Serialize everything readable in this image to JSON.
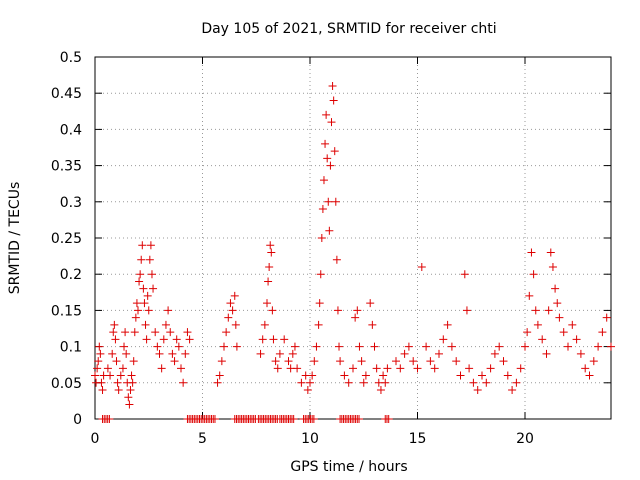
{
  "chart_data": {
    "type": "scatter",
    "title": "Day 105 of 2021, SRMTID for receiver chti",
    "xlabel": "GPS time / hours",
    "ylabel": "SRMTID / TECUs",
    "xlim": [
      0,
      24
    ],
    "ylim": [
      0,
      0.5
    ],
    "xticks": [
      0,
      5,
      10,
      15,
      20
    ],
    "yticks": [
      0,
      0.05,
      0.1,
      0.15,
      0.2,
      0.25,
      0.3,
      0.35,
      0.4,
      0.45,
      0.5
    ],
    "xtick_labels": [
      "0",
      "5",
      "10",
      "15",
      "20"
    ],
    "ytick_labels": [
      "0",
      "0.05",
      "0.1",
      "0.15",
      "0.2",
      "0.25",
      "0.3",
      "0.35",
      "0.4",
      "0.45",
      "0.5"
    ],
    "grid": true,
    "marker": "+",
    "color": "#dd0000",
    "series": [
      {
        "name": "SRMTID",
        "points": [
          [
            0.0,
            0.06
          ],
          [
            0.05,
            0.05
          ],
          [
            0.1,
            0.07
          ],
          [
            0.15,
            0.08
          ],
          [
            0.2,
            0.1
          ],
          [
            0.25,
            0.09
          ],
          [
            0.3,
            0.05
          ],
          [
            0.35,
            0.04
          ],
          [
            0.4,
            0.06
          ],
          [
            0.6,
            0.07
          ],
          [
            0.7,
            0.06
          ],
          [
            0.8,
            0.09
          ],
          [
            0.85,
            0.12
          ],
          [
            0.9,
            0.13
          ],
          [
            0.95,
            0.11
          ],
          [
            1.0,
            0.08
          ],
          [
            1.05,
            0.05
          ],
          [
            1.1,
            0.04
          ],
          [
            1.2,
            0.06
          ],
          [
            1.3,
            0.07
          ],
          [
            1.35,
            0.1
          ],
          [
            1.4,
            0.12
          ],
          [
            1.45,
            0.09
          ],
          [
            1.5,
            0.05
          ],
          [
            1.55,
            0.03
          ],
          [
            1.6,
            0.02
          ],
          [
            1.65,
            0.04
          ],
          [
            1.7,
            0.06
          ],
          [
            1.75,
            0.05
          ],
          [
            1.8,
            0.08
          ],
          [
            1.85,
            0.12
          ],
          [
            1.9,
            0.14
          ],
          [
            1.95,
            0.16
          ],
          [
            2.0,
            0.15
          ],
          [
            2.05,
            0.19
          ],
          [
            2.1,
            0.2
          ],
          [
            2.15,
            0.22
          ],
          [
            2.2,
            0.24
          ],
          [
            2.25,
            0.18
          ],
          [
            2.3,
            0.16
          ],
          [
            2.35,
            0.13
          ],
          [
            2.4,
            0.11
          ],
          [
            2.45,
            0.17
          ],
          [
            2.5,
            0.15
          ],
          [
            2.55,
            0.22
          ],
          [
            2.6,
            0.24
          ],
          [
            2.65,
            0.2
          ],
          [
            2.7,
            0.18
          ],
          [
            2.8,
            0.12
          ],
          [
            2.9,
            0.1
          ],
          [
            3.0,
            0.09
          ],
          [
            3.1,
            0.07
          ],
          [
            3.2,
            0.11
          ],
          [
            3.3,
            0.13
          ],
          [
            3.4,
            0.15
          ],
          [
            3.5,
            0.12
          ],
          [
            3.6,
            0.09
          ],
          [
            3.7,
            0.08
          ],
          [
            3.8,
            0.11
          ],
          [
            3.9,
            0.1
          ],
          [
            4.0,
            0.07
          ],
          [
            4.1,
            0.05
          ],
          [
            4.2,
            0.09
          ],
          [
            4.3,
            0.12
          ],
          [
            4.4,
            0.11
          ],
          [
            5.7,
            0.05
          ],
          [
            5.8,
            0.06
          ],
          [
            5.9,
            0.08
          ],
          [
            6.0,
            0.1
          ],
          [
            6.1,
            0.12
          ],
          [
            6.2,
            0.14
          ],
          [
            6.3,
            0.16
          ],
          [
            6.4,
            0.15
          ],
          [
            6.5,
            0.17
          ],
          [
            6.55,
            0.13
          ],
          [
            6.6,
            0.1
          ],
          [
            7.7,
            0.09
          ],
          [
            7.8,
            0.11
          ],
          [
            7.9,
            0.13
          ],
          [
            8.0,
            0.16
          ],
          [
            8.05,
            0.19
          ],
          [
            8.1,
            0.21
          ],
          [
            8.15,
            0.24
          ],
          [
            8.2,
            0.23
          ],
          [
            8.25,
            0.15
          ],
          [
            8.3,
            0.11
          ],
          [
            8.4,
            0.08
          ],
          [
            8.5,
            0.07
          ],
          [
            8.6,
            0.09
          ],
          [
            8.8,
            0.11
          ],
          [
            9.0,
            0.08
          ],
          [
            9.1,
            0.07
          ],
          [
            9.2,
            0.09
          ],
          [
            9.3,
            0.1
          ],
          [
            9.4,
            0.07
          ],
          [
            9.6,
            0.05
          ],
          [
            9.8,
            0.06
          ],
          [
            9.9,
            0.04
          ],
          [
            10.0,
            0.05
          ],
          [
            10.1,
            0.06
          ],
          [
            10.2,
            0.08
          ],
          [
            10.3,
            0.1
          ],
          [
            10.4,
            0.13
          ],
          [
            10.45,
            0.16
          ],
          [
            10.5,
            0.2
          ],
          [
            10.55,
            0.25
          ],
          [
            10.6,
            0.29
          ],
          [
            10.65,
            0.33
          ],
          [
            10.7,
            0.38
          ],
          [
            10.75,
            0.42
          ],
          [
            10.8,
            0.36
          ],
          [
            10.85,
            0.3
          ],
          [
            10.9,
            0.26
          ],
          [
            10.95,
            0.35
          ],
          [
            11.0,
            0.41
          ],
          [
            11.05,
            0.46
          ],
          [
            11.1,
            0.44
          ],
          [
            11.15,
            0.37
          ],
          [
            11.2,
            0.3
          ],
          [
            11.25,
            0.22
          ],
          [
            11.3,
            0.15
          ],
          [
            11.35,
            0.1
          ],
          [
            11.4,
            0.08
          ],
          [
            11.6,
            0.06
          ],
          [
            11.8,
            0.05
          ],
          [
            12.0,
            0.07
          ],
          [
            12.1,
            0.14
          ],
          [
            12.2,
            0.15
          ],
          [
            12.3,
            0.1
          ],
          [
            12.4,
            0.08
          ],
          [
            12.5,
            0.05
          ],
          [
            12.6,
            0.06
          ],
          [
            12.8,
            0.16
          ],
          [
            12.9,
            0.13
          ],
          [
            13.0,
            0.1
          ],
          [
            13.1,
            0.07
          ],
          [
            13.2,
            0.05
          ],
          [
            13.3,
            0.04
          ],
          [
            13.4,
            0.06
          ],
          [
            13.5,
            0.05
          ],
          [
            13.6,
            0.07
          ],
          [
            14.0,
            0.08
          ],
          [
            14.2,
            0.07
          ],
          [
            14.4,
            0.09
          ],
          [
            14.6,
            0.1
          ],
          [
            14.8,
            0.08
          ],
          [
            15.0,
            0.07
          ],
          [
            15.2,
            0.21
          ],
          [
            15.4,
            0.1
          ],
          [
            15.6,
            0.08
          ],
          [
            15.8,
            0.07
          ],
          [
            16.0,
            0.09
          ],
          [
            16.2,
            0.11
          ],
          [
            16.4,
            0.13
          ],
          [
            16.6,
            0.1
          ],
          [
            16.8,
            0.08
          ],
          [
            17.0,
            0.06
          ],
          [
            17.2,
            0.2
          ],
          [
            17.3,
            0.15
          ],
          [
            17.4,
            0.07
          ],
          [
            17.6,
            0.05
          ],
          [
            17.8,
            0.04
          ],
          [
            18.0,
            0.06
          ],
          [
            18.2,
            0.05
          ],
          [
            18.4,
            0.07
          ],
          [
            18.6,
            0.09
          ],
          [
            18.8,
            0.1
          ],
          [
            19.0,
            0.08
          ],
          [
            19.2,
            0.06
          ],
          [
            19.4,
            0.04
          ],
          [
            19.6,
            0.05
          ],
          [
            19.8,
            0.07
          ],
          [
            20.0,
            0.1
          ],
          [
            20.1,
            0.12
          ],
          [
            20.2,
            0.17
          ],
          [
            20.3,
            0.23
          ],
          [
            20.4,
            0.2
          ],
          [
            20.5,
            0.15
          ],
          [
            20.6,
            0.13
          ],
          [
            20.8,
            0.11
          ],
          [
            21.0,
            0.09
          ],
          [
            21.1,
            0.15
          ],
          [
            21.2,
            0.23
          ],
          [
            21.3,
            0.21
          ],
          [
            21.4,
            0.18
          ],
          [
            21.5,
            0.16
          ],
          [
            21.6,
            0.14
          ],
          [
            21.8,
            0.12
          ],
          [
            22.0,
            0.1
          ],
          [
            22.2,
            0.13
          ],
          [
            22.4,
            0.11
          ],
          [
            22.6,
            0.09
          ],
          [
            22.8,
            0.07
          ],
          [
            23.0,
            0.06
          ],
          [
            23.2,
            0.08
          ],
          [
            23.4,
            0.1
          ],
          [
            23.6,
            0.12
          ],
          [
            23.8,
            0.14
          ],
          [
            24.0,
            0.1
          ]
        ]
      }
    ],
    "zero_gaps": [
      [
        0.35,
        0.7
      ],
      [
        4.3,
        5.6
      ],
      [
        6.5,
        7.5
      ],
      [
        7.6,
        8.5
      ],
      [
        8.6,
        9.3
      ],
      [
        9.7,
        10.2
      ],
      [
        11.4,
        12.3
      ],
      [
        13.5,
        13.7
      ]
    ]
  }
}
